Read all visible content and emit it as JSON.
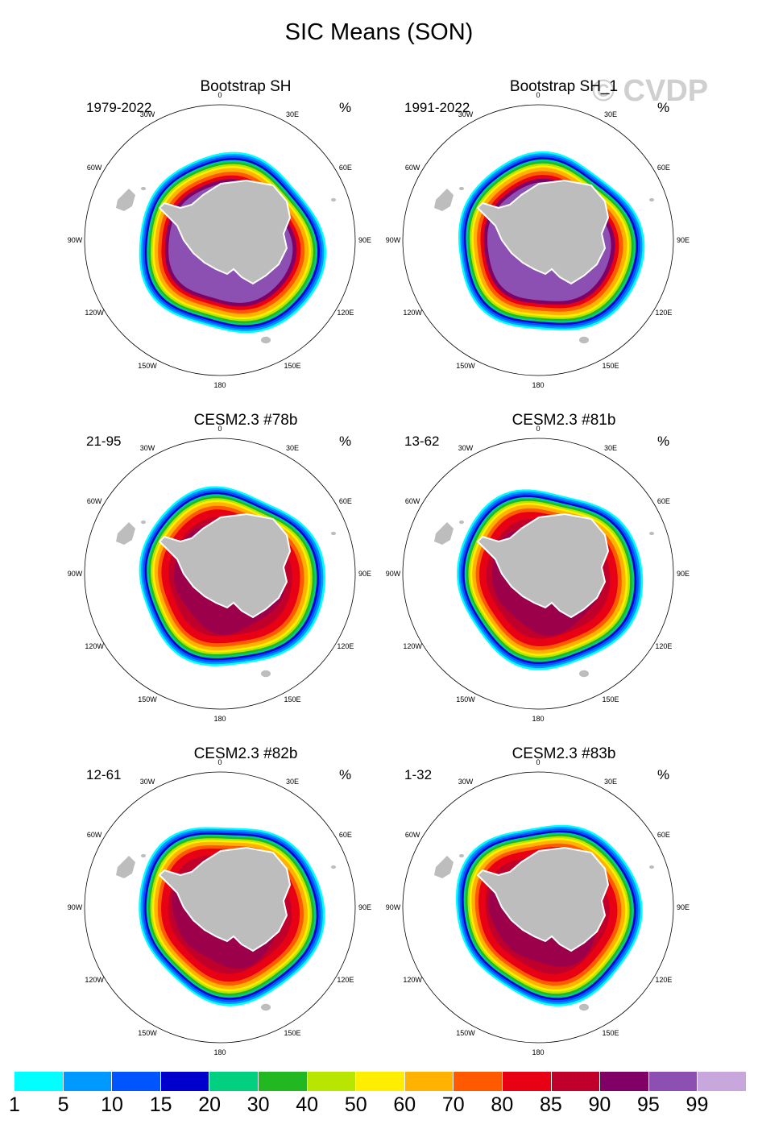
{
  "figure": {
    "title": "SIC Means (SON)",
    "watermark": "© CVDP"
  },
  "colors": {
    "land": "#bdbdbd",
    "levels": [
      "#00ffff",
      "#0099ff",
      "#0055ff",
      "#0000cc",
      "#00d080",
      "#22b822",
      "#b8e600",
      "#ffee00",
      "#ffb300",
      "#ff5a00",
      "#e80014",
      "#c0002a",
      "#800066",
      "#8c4fb2",
      "#c8a8dc"
    ]
  },
  "colorbar": {
    "labels": [
      "1",
      "5",
      "10",
      "15",
      "20",
      "30",
      "40",
      "50",
      "60",
      "70",
      "80",
      "85",
      "90",
      "95",
      "99"
    ]
  },
  "lon_labels": [
    "0",
    "30E",
    "60E",
    "90E",
    "120E",
    "150E",
    "180",
    "150W",
    "120W",
    "90W",
    "60W",
    "30W"
  ],
  "panels": [
    {
      "title": "Bootstrap SH",
      "range": "1979-2022",
      "unit": "%"
    },
    {
      "title": "Bootstrap SH_1",
      "range": "1991-2022",
      "unit": "%"
    },
    {
      "title": "CESM2.3 #78b",
      "range": "21-95",
      "unit": "%"
    },
    {
      "title": "CESM2.3 #81b",
      "range": "13-62",
      "unit": "%"
    },
    {
      "title": "CESM2.3 #82b",
      "range": "12-61",
      "unit": "%"
    },
    {
      "title": "CESM2.3 #83b",
      "range": "1-32",
      "unit": "%"
    }
  ],
  "map_data": {
    "projection": "south-polar-stereographic",
    "variable": "sea ice concentration",
    "season": "SON",
    "obs_core": "95-99",
    "model_core": "80-90"
  }
}
